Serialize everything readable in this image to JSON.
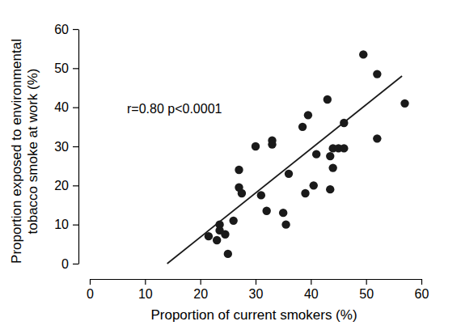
{
  "chart_data": {
    "type": "scatter",
    "xlabel": "Proportion of current smokers (%)",
    "ylabel": [
      "Proportion exposed to environmental",
      "tobacco smoke at work (%)"
    ],
    "annotation": "r=0.80 p<0.0001",
    "x": [
      21.5,
      23,
      23.5,
      23.5,
      24.5,
      25,
      26,
      27,
      27,
      27.5,
      30,
      31,
      32,
      33,
      33,
      35,
      35.5,
      36,
      38.5,
      39,
      39.5,
      40.5,
      41,
      43,
      43.5,
      43.5,
      44,
      44,
      45,
      46,
      46,
      49.5,
      52,
      52,
      57
    ],
    "values": [
      7,
      6,
      10,
      8.5,
      7.5,
      2.5,
      11,
      24,
      19.5,
      18,
      30,
      17.5,
      13.5,
      31.5,
      30.5,
      13,
      10,
      23,
      35,
      18,
      38,
      20,
      28,
      42,
      19,
      27.5,
      29.5,
      24.5,
      29.5,
      36,
      29.5,
      53.5,
      48.5,
      32,
      41
    ],
    "fit_line": {
      "x": [
        14,
        56.5
      ],
      "y": [
        0,
        48
      ]
    },
    "color": "#1a1a1a",
    "marker": "circle",
    "xlim": [
      0,
      60
    ],
    "xticks": [
      0,
      10,
      20,
      30,
      40,
      50,
      60
    ],
    "ylim": [
      0,
      60
    ],
    "yticks": [
      0,
      10,
      20,
      30,
      40,
      50,
      60
    ],
    "grid": false
  }
}
